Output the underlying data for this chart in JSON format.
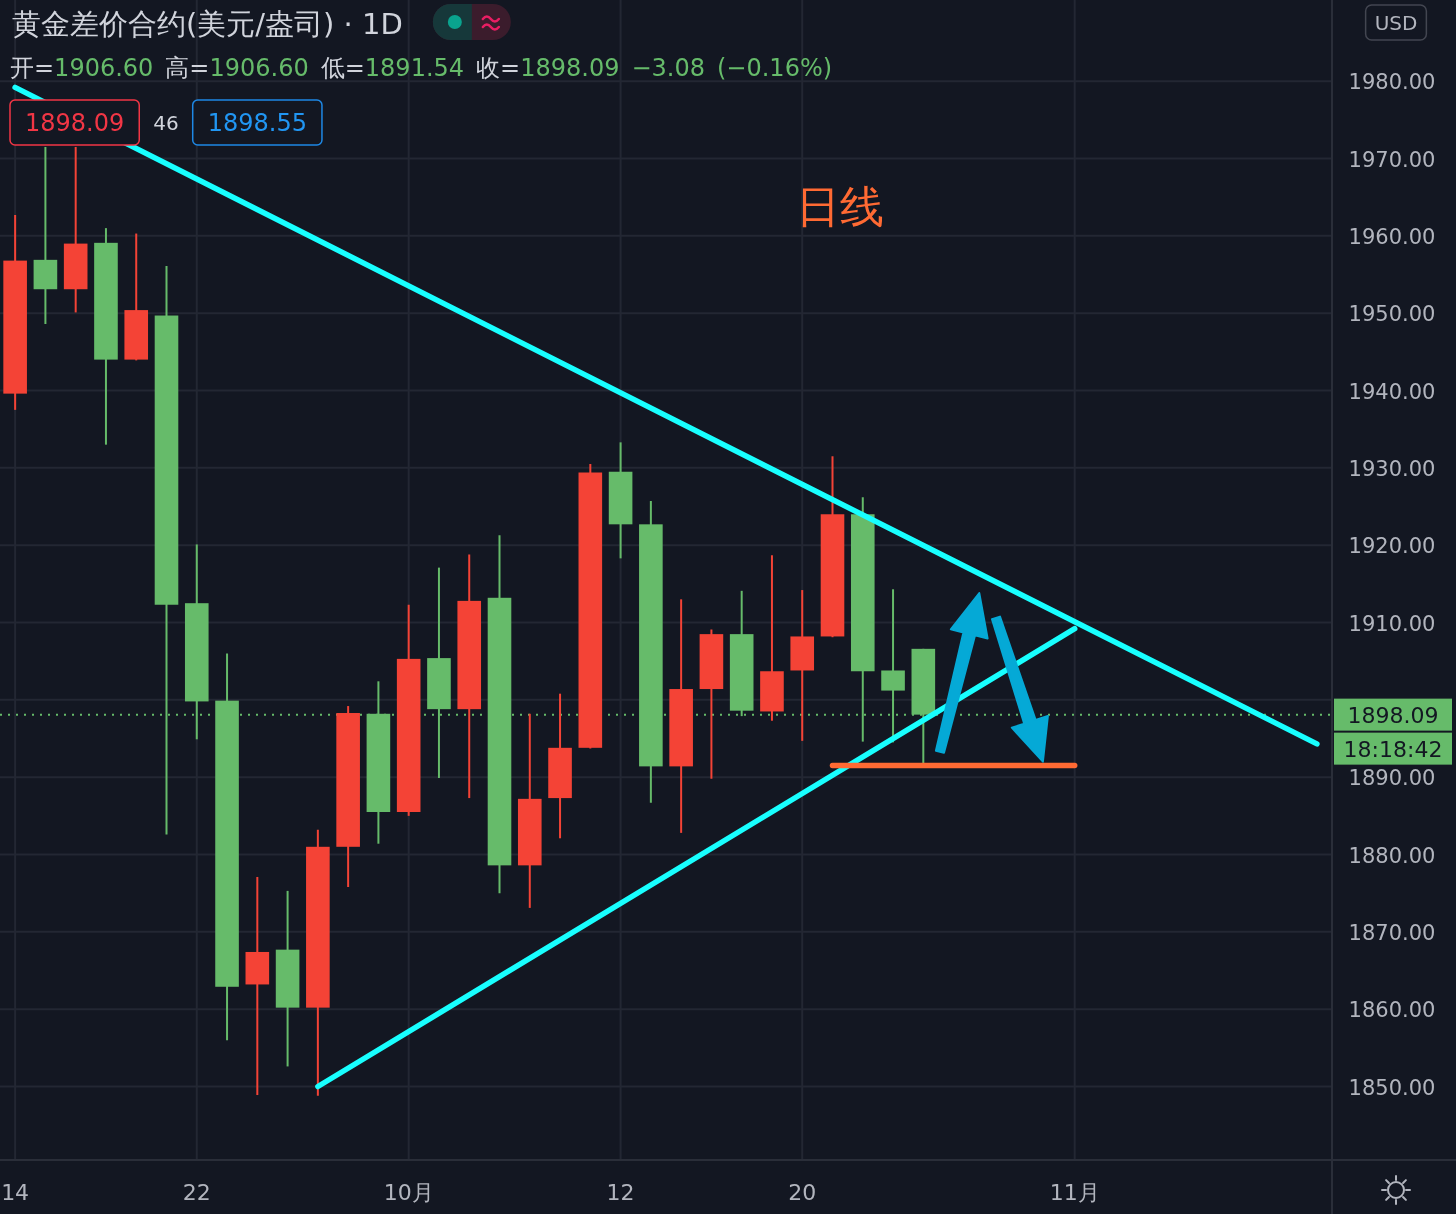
{
  "chart_data": {
    "type": "candlestick",
    "title": "黄金差价合约(美元/盎司) · 1D",
    "subtitle": "开=1906.60 高=1906.60 低=1891.54 收=1898.09 −3.08 (−0.16%)",
    "ylabel": "USD",
    "categories": [
      "14",
      null,
      null,
      null,
      null,
      null,
      "22",
      null,
      null,
      null,
      null,
      null,
      null,
      "10月",
      null,
      null,
      null,
      null,
      null,
      null,
      "12",
      null,
      null,
      null,
      null,
      null,
      "20",
      null,
      null,
      null,
      null,
      null,
      null,
      null,
      null,
      "11月",
      null,
      null,
      null,
      null,
      null,
      null,
      null,
      null
    ],
    "ohlc": [
      [
        1939.6,
        1962.7,
        1937.5,
        1956.8
      ],
      [
        1956.9,
        1971.5,
        1948.6,
        1953.1
      ],
      [
        1953.1,
        1971.5,
        1950.1,
        1959.0
      ],
      [
        1959.1,
        1961.0,
        1933.0,
        1944.0
      ],
      [
        1944.0,
        1960.3,
        1943.9,
        1950.4
      ],
      [
        1949.7,
        1956.1,
        1882.6,
        1912.3
      ],
      [
        1912.5,
        1920.1,
        1894.9,
        1899.8
      ],
      [
        1899.9,
        1906.0,
        1856.0,
        1862.9
      ],
      [
        1863.2,
        1877.1,
        1848.9,
        1867.4
      ],
      [
        1867.7,
        1875.3,
        1852.6,
        1860.2
      ],
      [
        1860.2,
        1883.2,
        1848.8,
        1881.0
      ],
      [
        1881.0,
        1899.2,
        1875.8,
        1898.3
      ],
      [
        1898.2,
        1902.4,
        1881.4,
        1885.5
      ],
      [
        1885.5,
        1912.3,
        1885.0,
        1905.3
      ],
      [
        1905.4,
        1917.1,
        1889.9,
        1898.8
      ],
      [
        1898.8,
        1918.8,
        1887.3,
        1912.8
      ],
      [
        1913.2,
        1921.3,
        1875.0,
        1878.6
      ],
      [
        1878.6,
        1898.2,
        1873.1,
        1887.2
      ],
      [
        1887.3,
        1900.8,
        1882.1,
        1893.8
      ],
      [
        1893.8,
        1930.5,
        1893.7,
        1929.4
      ],
      [
        1929.5,
        1933.3,
        1918.3,
        1922.7
      ],
      [
        1922.7,
        1925.7,
        1886.7,
        1891.4
      ],
      [
        1891.4,
        1913.0,
        1882.8,
        1901.4
      ],
      [
        1901.4,
        1909.1,
        1889.8,
        1908.5
      ],
      [
        1908.5,
        1914.1,
        1897.9,
        1898.6
      ],
      [
        1898.5,
        1918.7,
        1897.3,
        1903.7
      ],
      [
        1903.8,
        1914.2,
        1894.7,
        1908.2
      ],
      [
        1908.2,
        1931.5,
        1908.1,
        1924.0
      ],
      [
        1924.0,
        1926.2,
        1894.6,
        1903.7
      ],
      [
        1903.8,
        1914.3,
        1894.5,
        1901.2
      ],
      [
        1906.6,
        1906.6,
        1891.54,
        1898.09
      ],
      null,
      null,
      null,
      null,
      null,
      null,
      null,
      null,
      null,
      null,
      null,
      null,
      null
    ],
    "colors": [
      "#f44336",
      "#66bb6a",
      "#f44336",
      "#66bb6a",
      "#f44336",
      "#66bb6a",
      "#66bb6a",
      "#66bb6a",
      "#f44336",
      "#66bb6a",
      "#f44336",
      "#f44336",
      "#66bb6a",
      "#f44336",
      "#66bb6a",
      "#f44336",
      "#66bb6a",
      "#f44336",
      "#f44336",
      "#f44336",
      "#66bb6a",
      "#66bb6a",
      "#f44336",
      "#f44336",
      "#66bb6a",
      "#f44336",
      "#f44336",
      "#f44336",
      "#66bb6a",
      "#66bb6a",
      "#66bb6a",
      null,
      null,
      null,
      null,
      null,
      null,
      null,
      null,
      null,
      null,
      null,
      null,
      null
    ],
    "series": [
      {
        "type": "line",
        "color": "#18ffff",
        "values": [
          1979.2,
          null,
          null,
          null,
          null,
          null,
          null,
          null,
          null,
          null,
          null,
          null,
          null,
          null,
          null,
          null,
          null,
          null,
          null,
          null,
          null,
          null,
          null,
          null,
          null,
          null,
          null,
          null,
          null,
          null,
          null,
          null,
          null,
          null,
          null,
          null,
          null,
          null,
          null,
          null,
          null,
          null,
          null,
          1894.3
        ]
      },
      {
        "type": "line",
        "color": "#18ffff",
        "values": [
          null,
          null,
          null,
          null,
          null,
          null,
          null,
          null,
          null,
          null,
          1850.0,
          null,
          null,
          null,
          null,
          null,
          null,
          null,
          null,
          null,
          null,
          null,
          null,
          null,
          null,
          null,
          null,
          null,
          null,
          null,
          null,
          null,
          null,
          null,
          null,
          1909.2,
          null,
          null,
          null,
          null,
          null,
          null,
          null,
          null
        ]
      },
      {
        "type": "line",
        "color": "#ff6a33",
        "values": [
          null,
          null,
          null,
          null,
          null,
          null,
          null,
          null,
          null,
          null,
          null,
          null,
          null,
          null,
          null,
          null,
          null,
          null,
          null,
          null,
          null,
          null,
          null,
          null,
          null,
          null,
          null,
          1891.5,
          null,
          null,
          null,
          null,
          null,
          null,
          null,
          1891.5,
          null,
          null,
          null,
          null,
          null,
          null,
          null,
          null
        ]
      }
    ],
    "ref_lines": [
      {
        "axis": "y",
        "value": 1898.09,
        "label": "1898.09",
        "color": "#66bb6a",
        "line_style": "dotted"
      }
    ],
    "annotations": [
      "1898.09",
      "46",
      "1898.55",
      "日线",
      "18:18:42"
    ],
    "ylim": [
      1840.5,
      1990.5
    ],
    "yticks": [
      {
        "value": 1850,
        "label": "1850.00"
      },
      {
        "value": 1860,
        "label": "1860.00"
      },
      {
        "value": 1870,
        "label": "1870.00"
      },
      {
        "value": 1880,
        "label": "1880.00"
      },
      {
        "value": 1890,
        "label": "1890.00"
      },
      {
        "value": 1900,
        "label": null
      },
      {
        "value": 1910,
        "label": "1910.00"
      },
      {
        "value": 1920,
        "label": "1920.00"
      },
      {
        "value": 1930,
        "label": "1930.00"
      },
      {
        "value": 1940,
        "label": "1940.00"
      },
      {
        "value": 1950,
        "label": "1950.00"
      },
      {
        "value": 1960,
        "label": "1960.00"
      },
      {
        "value": 1970,
        "label": "1970.00"
      },
      {
        "value": 1980,
        "label": "1980.00"
      }
    ],
    "grid": true
  }
}
